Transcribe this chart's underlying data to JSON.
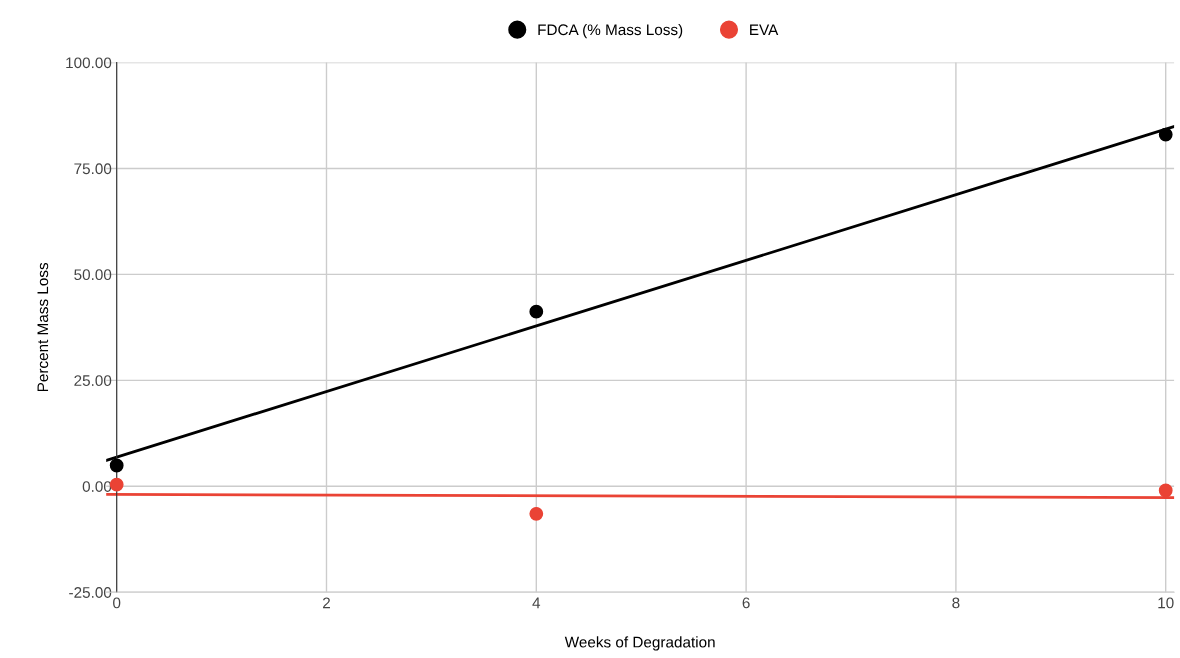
{
  "chart_data": {
    "type": "scatter",
    "xlabel": "Weeks of Degradation",
    "ylabel": "Percent Mass Loss",
    "series": [
      {
        "name": "FDCA (% Mass Loss)",
        "color": "#000000",
        "marker": "circle",
        "x": [
          0,
          4,
          10
        ],
        "values": [
          4.9,
          41.2,
          83.0
        ]
      },
      {
        "name": "EVA",
        "color": "#ea4335",
        "marker": "circle",
        "x": [
          0,
          4,
          10
        ],
        "values": [
          0.4,
          -6.5,
          -1.0
        ]
      },
      {
        "type": "line",
        "marker": "none",
        "color": "#000000",
        "x": [
          -0.1,
          10.08
        ],
        "values": [
          6.1,
          84.9
        ]
      },
      {
        "type": "line",
        "marker": "none",
        "color": "#ea4335",
        "x": [
          -0.1,
          10.08
        ],
        "values": [
          -1.9,
          -2.7
        ]
      }
    ],
    "xlim": [
      -0.1,
      10.08
    ],
    "xticks": [
      0,
      2,
      4,
      6,
      8,
      10
    ],
    "ylim": [
      -25,
      100
    ],
    "yticks": [
      {
        "value": -25,
        "label": "-25.00"
      },
      {
        "value": 0,
        "label": "0.00"
      },
      {
        "value": 25,
        "label": "25.00"
      },
      {
        "value": 50,
        "label": "50.00"
      },
      {
        "value": 75,
        "label": "75.00"
      },
      {
        "value": 100,
        "label": "100.00"
      }
    ],
    "grid": true,
    "legend": "top",
    "line_style": "solid"
  }
}
